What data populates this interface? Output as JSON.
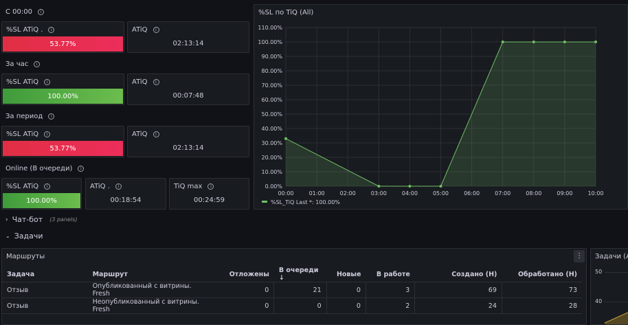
{
  "sections": {
    "s1": "С 00:00",
    "s2": "За час",
    "s3": "За период",
    "s4": "Online (В очереди)"
  },
  "stats": {
    "sl1_title": "%SL ATiQ .",
    "sl1_value": "53.77%",
    "atiq1_title": "ATiQ",
    "atiq1_value": "02:13:14",
    "sl2_title": "%SL ATiQ",
    "sl2_value": "100.00%",
    "atiq2_title": "ATiQ",
    "atiq2_value": "00:07:48",
    "sl3_title": "%SL ATiQ",
    "sl3_value": "53.77%",
    "atiq3_title": "ATiQ",
    "atiq3_value": "02:13:14",
    "sl4_title": "%SL ATiQ",
    "sl4_value": "100.00%",
    "atiq4_title": "ATiQ .",
    "atiq4_value": "00:18:54",
    "tiqmax_title": "TiQ max",
    "tiqmax_value": "00:24:59"
  },
  "chart_panel": {
    "title": "%SL по TiQ (All)"
  },
  "chart_data": {
    "type": "area",
    "x": [
      "00:00",
      "03:00",
      "04:00",
      "05:00",
      "07:00",
      "08:00",
      "09:00",
      "10:00"
    ],
    "x_ticks": [
      "00:00",
      "01:00",
      "02:00",
      "03:00",
      "04:00",
      "05:00",
      "06:00",
      "07:00",
      "08:00",
      "09:00",
      "10:00"
    ],
    "y_ticks": [
      "110.00%",
      "100.00%",
      "90.00%",
      "80.00%",
      "70.00%",
      "60.00%",
      "50.00%",
      "40.00%",
      "30.00%",
      "20.00%",
      "10.00%",
      "0.00%"
    ],
    "series": [
      {
        "name": "%SL_TiQ",
        "values": [
          33,
          0,
          0,
          0,
          100,
          100,
          100,
          100
        ]
      }
    ],
    "ylim": [
      0,
      110
    ],
    "legend": "%SL_TiQ  Last *: 100.00%",
    "legend_placement": "bottom-left",
    "color": "#73bf69",
    "grid": true
  },
  "rows": {
    "chatbot": "Чат-бот",
    "chatbot_meta": "(3 panels)",
    "tasks": "Задачи"
  },
  "table_panel": {
    "title": "Маршруты",
    "menu_icon": "⋮",
    "headers": [
      "Задача",
      "Маршрут",
      "Отложены",
      "В очереди",
      "Новые",
      "В работе",
      "Создано (Н)",
      "Обработано (Н)"
    ],
    "sort_indicator": "↓",
    "rows": [
      [
        "Отзыв",
        "Опубликованный с витрины. Fresh",
        "0",
        "21",
        "0",
        "3",
        "69",
        "73"
      ],
      [
        "Отзыв",
        "Неопубликованный с витрины. Fresh",
        "0",
        "0",
        "0",
        "2",
        "24",
        "28"
      ]
    ]
  },
  "right_panel": {
    "title": "Задачи (All)",
    "tick_50": "50",
    "tick_40": "40"
  },
  "colors": {
    "bg": "#111217",
    "panel": "#181b1f",
    "border": "#2c2f36",
    "red": "#e02f44",
    "green": "#73bf69"
  }
}
